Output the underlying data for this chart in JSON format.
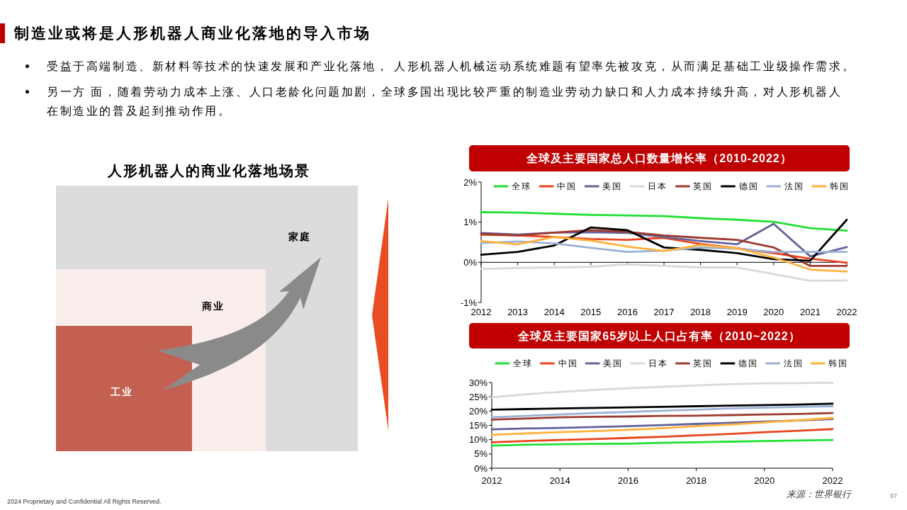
{
  "chart_data": [
    {
      "type": "other",
      "title": "制造业或将是人形机器人商业化落地的导入市场",
      "annotations": [
        "受益于高端制造、新材料等技术的快速发展和产业化落地， 人形机器人机械运动系统难题有望率先被攻克，从而满足基础工业级操作需求。",
        "另一方 面，随着劳动力成本上涨、人口老龄化问题加剧，全球多国出现比较严重的制造业劳动力缺口和人力成本持续升高，对人形机器人在制造业的普及起到推动作用。",
        "2024 Proprietary and Confidential All Rights Reserved.",
        "97"
      ]
    },
    {
      "type": "other",
      "title": "人形机器人的商业化落地场景",
      "annotations": [
        "家庭",
        "商业",
        "工业"
      ]
    },
    {
      "type": "line",
      "title": "全球及主要国家总人口数量增长率（2010-2022）",
      "x": [
        2012,
        2013,
        2014,
        2015,
        2016,
        2017,
        2018,
        2019,
        2020,
        2021,
        2022
      ],
      "xlim": [
        2012,
        2022
      ],
      "xticks": [
        2012,
        2013,
        2014,
        2015,
        2016,
        2017,
        2018,
        2019,
        2020,
        2021,
        2022
      ],
      "ylim": [
        -1,
        2
      ],
      "yticks": [
        {
          "value": -1,
          "label": "-1%"
        },
        {
          "value": 0,
          "label": "0%"
        },
        {
          "value": 1,
          "label": "1%"
        },
        {
          "value": 2,
          "label": "2%"
        }
      ],
      "legend": "top",
      "series": [
        {
          "name": "全球",
          "color": "#22e033",
          "values": [
            1.25,
            1.24,
            1.21,
            1.18,
            1.17,
            1.15,
            1.1,
            1.06,
            1.01,
            0.85,
            0.79
          ]
        },
        {
          "name": "中国",
          "color": "#e8451e",
          "values": [
            0.69,
            0.67,
            0.63,
            0.58,
            0.56,
            0.61,
            0.46,
            0.35,
            0.23,
            0.09,
            -0.01
          ]
        },
        {
          "name": "美国",
          "color": "#62629c",
          "values": [
            0.73,
            0.69,
            0.74,
            0.75,
            0.73,
            0.63,
            0.53,
            0.45,
            0.96,
            0.15,
            0.38
          ]
        },
        {
          "name": "日本",
          "color": "#d9d9d9",
          "values": [
            -0.17,
            -0.14,
            -0.13,
            -0.11,
            -0.05,
            -0.09,
            -0.13,
            -0.13,
            -0.29,
            -0.46,
            -0.45
          ]
        },
        {
          "name": "英国",
          "color": "#9c3b2f",
          "values": [
            0.71,
            0.67,
            0.74,
            0.8,
            0.76,
            0.67,
            0.61,
            0.56,
            0.37,
            -0.09,
            -0.09
          ]
        },
        {
          "name": "德国",
          "color": "#000000",
          "values": [
            0.19,
            0.26,
            0.42,
            0.87,
            0.8,
            0.37,
            0.31,
            0.23,
            0.08,
            0.04,
            1.06
          ]
        },
        {
          "name": "法国",
          "color": "#9bb1d6",
          "values": [
            0.48,
            0.52,
            0.47,
            0.36,
            0.26,
            0.29,
            0.37,
            0.34,
            0.26,
            0.26,
            0.26
          ]
        },
        {
          "name": "韩国",
          "color": "#ffb23c",
          "values": [
            0.53,
            0.45,
            0.63,
            0.54,
            0.39,
            0.28,
            0.43,
            0.35,
            0.12,
            -0.18,
            -0.23
          ]
        }
      ]
    },
    {
      "type": "line",
      "title": "全球及主要国家65岁以上人口占有率（2010~2022）",
      "x": [
        2012,
        2013,
        2014,
        2015,
        2016,
        2017,
        2018,
        2019,
        2020,
        2021,
        2022
      ],
      "xlim": [
        2012,
        2022
      ],
      "xticks": [
        2012,
        2014,
        2016,
        2018,
        2020,
        2022
      ],
      "ylim": [
        0,
        30
      ],
      "yticks": [
        {
          "value": 0,
          "label": "0%"
        },
        {
          "value": 5,
          "label": "5%"
        },
        {
          "value": 10,
          "label": "10%"
        },
        {
          "value": 15,
          "label": "15%"
        },
        {
          "value": 20,
          "label": "20%"
        },
        {
          "value": 25,
          "label": "25%"
        },
        {
          "value": 30,
          "label": "30%"
        }
      ],
      "legend": "top",
      "annotations": [
        "来源：世界银行"
      ],
      "series": [
        {
          "name": "全球",
          "color": "#22e033",
          "values": [
            7.9,
            8.2,
            8.4,
            8.5,
            8.6,
            8.9,
            9.1,
            9.3,
            9.5,
            9.7,
            9.9
          ]
        },
        {
          "name": "中国",
          "color": "#e8451e",
          "values": [
            9.1,
            9.5,
            9.9,
            10.2,
            10.6,
            11.0,
            11.5,
            12.0,
            12.6,
            13.1,
            13.7
          ]
        },
        {
          "name": "美国",
          "color": "#62629c",
          "values": [
            13.6,
            13.9,
            14.1,
            14.4,
            14.7,
            15.1,
            15.5,
            15.9,
            16.3,
            16.7,
            17.2
          ]
        },
        {
          "name": "日本",
          "color": "#d9d9d9",
          "values": [
            24.8,
            25.9,
            26.7,
            27.4,
            28.0,
            28.5,
            29.0,
            29.4,
            29.7,
            29.8,
            29.9
          ]
        },
        {
          "name": "英国",
          "color": "#9c3b2f",
          "values": [
            17.0,
            17.4,
            17.8,
            18.0,
            18.1,
            18.3,
            18.4,
            18.6,
            18.8,
            19.0,
            19.3
          ]
        },
        {
          "name": "德国",
          "color": "#000000",
          "values": [
            20.5,
            20.7,
            20.9,
            21.1,
            21.3,
            21.5,
            21.7,
            21.9,
            22.1,
            22.3,
            22.6
          ]
        },
        {
          "name": "法国",
          "color": "#9bb1d6",
          "values": [
            17.8,
            18.3,
            18.8,
            19.3,
            19.7,
            20.1,
            20.5,
            20.9,
            21.2,
            21.5,
            21.7
          ]
        },
        {
          "name": "韩国",
          "color": "#ffb23c",
          "values": [
            11.7,
            12.2,
            12.6,
            13.0,
            13.4,
            14.0,
            14.7,
            15.3,
            16.0,
            16.8,
            17.6
          ]
        }
      ]
    }
  ]
}
